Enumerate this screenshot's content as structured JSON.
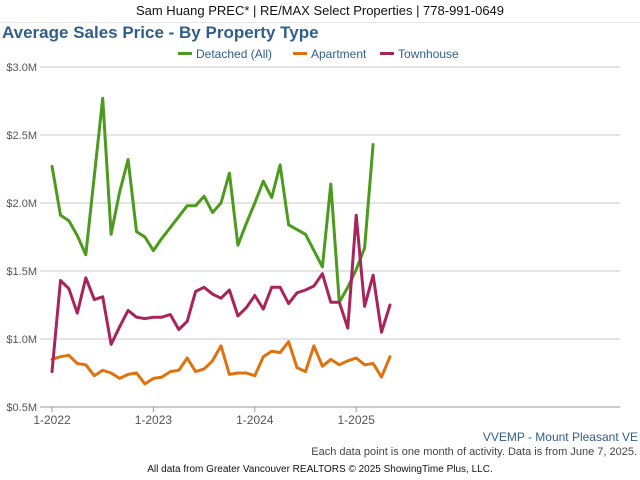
{
  "header": {
    "agent_line": "Sam Huang PREC* | RE/MAX Select Properties | 778-991-0649"
  },
  "chart_data": {
    "type": "line",
    "title": "Average Sales Price - By Property Type",
    "xlabel": "",
    "ylabel": "",
    "x_ticks": [
      "1-2022",
      "1-2023",
      "1-2024",
      "1-2025"
    ],
    "y_ticks": [
      "$0.5M",
      "$1.0M",
      "$1.5M",
      "$2.0M",
      "$2.5M",
      "$3.0M"
    ],
    "ylim": [
      0.5,
      3.0
    ],
    "y_unit": "$M",
    "x": [
      "2022-01",
      "2022-02",
      "2022-03",
      "2022-04",
      "2022-05",
      "2022-06",
      "2022-07",
      "2022-08",
      "2022-09",
      "2022-10",
      "2022-11",
      "2022-12",
      "2023-01",
      "2023-02",
      "2023-03",
      "2023-04",
      "2023-05",
      "2023-06",
      "2023-07",
      "2023-08",
      "2023-09",
      "2023-10",
      "2023-11",
      "2023-12",
      "2024-01",
      "2024-02",
      "2024-03",
      "2024-04",
      "2024-05",
      "2024-06",
      "2024-07",
      "2024-08",
      "2024-09",
      "2024-10",
      "2024-11",
      "2024-12",
      "2025-01",
      "2025-02",
      "2025-03",
      "2025-04",
      "2025-05"
    ],
    "legend_position": "top-center",
    "grid": true,
    "series": [
      {
        "name": "Detached (All)",
        "color": "#4c9a1e",
        "values": [
          2.27,
          1.91,
          1.87,
          1.76,
          1.62,
          null,
          2.77,
          1.77,
          2.08,
          2.32,
          1.79,
          1.75,
          1.65,
          1.74,
          1.82,
          1.9,
          1.98,
          1.98,
          2.05,
          1.93,
          2.0,
          2.22,
          1.69,
          1.85,
          2.0,
          2.16,
          2.04,
          2.28,
          1.84,
          null,
          1.77,
          null,
          1.53,
          2.14,
          1.27,
          1.38,
          1.51,
          1.67,
          2.43,
          null,
          null
        ]
      },
      {
        "name": "Apartment",
        "color": "#e0720e",
        "values": [
          0.85,
          0.87,
          0.88,
          0.82,
          0.81,
          0.73,
          0.77,
          0.75,
          0.71,
          0.74,
          0.75,
          0.67,
          0.71,
          0.72,
          0.76,
          0.77,
          0.86,
          0.76,
          0.78,
          0.84,
          0.95,
          0.74,
          0.75,
          0.75,
          0.73,
          0.87,
          0.91,
          0.9,
          0.98,
          0.79,
          0.76,
          0.95,
          0.8,
          0.85,
          0.81,
          0.84,
          0.86,
          0.81,
          0.82,
          0.72,
          0.87
        ]
      },
      {
        "name": "Townhouse",
        "color": "#a8245a",
        "values": [
          0.76,
          1.43,
          1.37,
          1.19,
          1.45,
          1.29,
          1.31,
          0.96,
          1.09,
          1.21,
          1.16,
          1.15,
          1.16,
          1.16,
          1.18,
          1.07,
          1.13,
          1.35,
          1.38,
          1.33,
          1.3,
          1.36,
          1.17,
          1.23,
          1.32,
          1.22,
          1.38,
          1.38,
          1.26,
          1.34,
          1.36,
          1.39,
          1.48,
          1.27,
          1.27,
          1.08,
          1.91,
          1.24,
          1.47,
          1.05,
          1.25
        ]
      }
    ]
  },
  "notes": {
    "region": "VVEMP - Mount Pleasant VE",
    "data_note": "Each data point is one month of activity. Data is from June 7, 2025.",
    "footer": "All data from Greater Vancouver REALTORS © 2025 ShowingTime Plus, LLC."
  }
}
